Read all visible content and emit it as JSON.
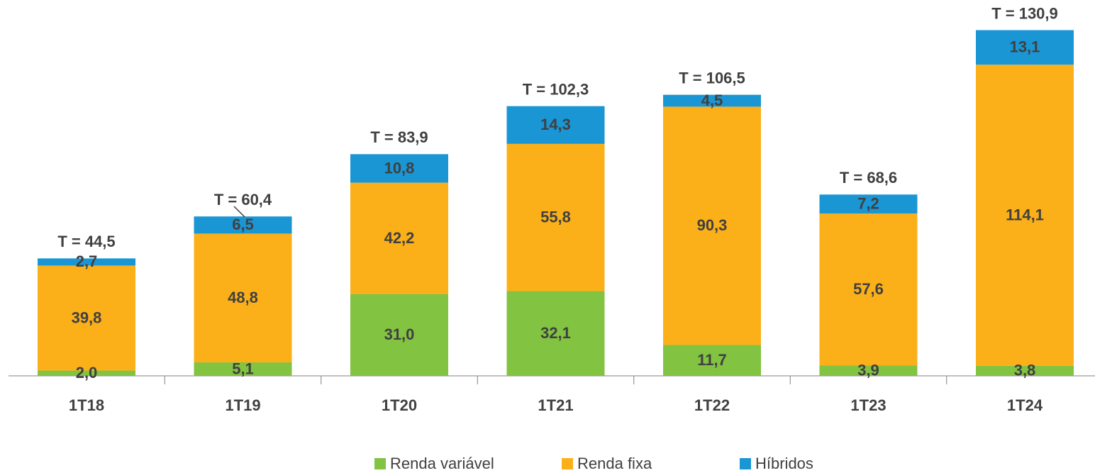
{
  "chart_data": {
    "type": "stacked_bar",
    "categories": [
      "1T18",
      "1T19",
      "1T20",
      "1T21",
      "1T22",
      "1T23",
      "1T24"
    ],
    "series": [
      {
        "name": "Renda variável",
        "color": "#82c341",
        "values": [
          2.0,
          5.1,
          31.0,
          32.1,
          11.7,
          3.9,
          3.8
        ],
        "value_labels": [
          "2,0",
          "5,1",
          "31,0",
          "32,1",
          "11,7",
          "3,9",
          "3,8"
        ]
      },
      {
        "name": "Renda fixa",
        "color": "#fbb01a",
        "values": [
          39.8,
          48.8,
          42.2,
          55.8,
          90.3,
          57.6,
          114.1
        ],
        "value_labels": [
          "39,8",
          "48,8",
          "42,2",
          "55,8",
          "90,3",
          "57,6",
          "114,1"
        ]
      },
      {
        "name": "Híbridos",
        "color": "#1a96d4",
        "values": [
          2.7,
          6.5,
          10.8,
          14.3,
          4.5,
          7.2,
          13.1
        ],
        "value_labels": [
          "2,7",
          "6,5",
          "10,8",
          "14,3",
          "4,5",
          "7,2",
          "13,1"
        ]
      }
    ],
    "annotations": [
      "T = 44,5",
      "T = 60,4",
      "T = 83,9",
      "T = 102,3",
      "T = 106,5",
      "T = 68,6",
      "T = 130,9"
    ],
    "ylim": [
      0,
      140
    ],
    "legend": "bottom"
  }
}
